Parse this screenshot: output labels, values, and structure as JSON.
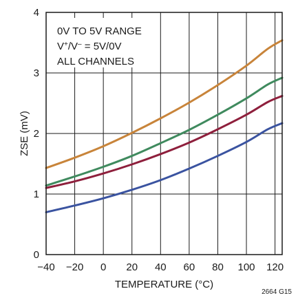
{
  "chart_data": {
    "type": "line",
    "xlabel": "TEMPERATURE (°C)",
    "ylabel": "ZSE (mV)",
    "xlim": [
      -40,
      125
    ],
    "ylim": [
      0,
      4
    ],
    "xticks": [
      -40,
      -20,
      0,
      20,
      40,
      60,
      80,
      100,
      120
    ],
    "yticks": [
      0,
      1,
      2,
      3,
      4
    ],
    "grid": true,
    "annotation": {
      "line1": "0V TO 5V RANGE",
      "line2_main": "V",
      "line2_sup1": "+",
      "line2_mid": "/V",
      "line2_sup2": "–",
      "line2_end": " = 5V/0V",
      "line3": "ALL CHANNELS"
    },
    "figure_code": "2664 G15",
    "series": [
      {
        "color": "#c8843a",
        "x": [
          -40,
          -20,
          0,
          20,
          40,
          60,
          80,
          100,
          115,
          125
        ],
        "y": [
          1.43,
          1.6,
          1.79,
          2.01,
          2.25,
          2.51,
          2.8,
          3.12,
          3.4,
          3.54
        ]
      },
      {
        "color": "#3f8a5e",
        "x": [
          -40,
          -20,
          0,
          20,
          40,
          60,
          80,
          100,
          115,
          125
        ],
        "y": [
          1.14,
          1.29,
          1.45,
          1.63,
          1.84,
          2.06,
          2.31,
          2.58,
          2.81,
          2.92
        ]
      },
      {
        "color": "#8e1f3c",
        "x": [
          -40,
          -20,
          0,
          20,
          40,
          60,
          80,
          100,
          115,
          125
        ],
        "y": [
          1.1,
          1.21,
          1.34,
          1.49,
          1.66,
          1.85,
          2.07,
          2.31,
          2.52,
          2.62
        ]
      },
      {
        "color": "#3a53a0",
        "x": [
          -40,
          -20,
          0,
          20,
          40,
          60,
          80,
          100,
          115,
          125
        ],
        "y": [
          0.7,
          0.81,
          0.93,
          1.07,
          1.23,
          1.42,
          1.63,
          1.86,
          2.07,
          2.17
        ]
      }
    ]
  }
}
